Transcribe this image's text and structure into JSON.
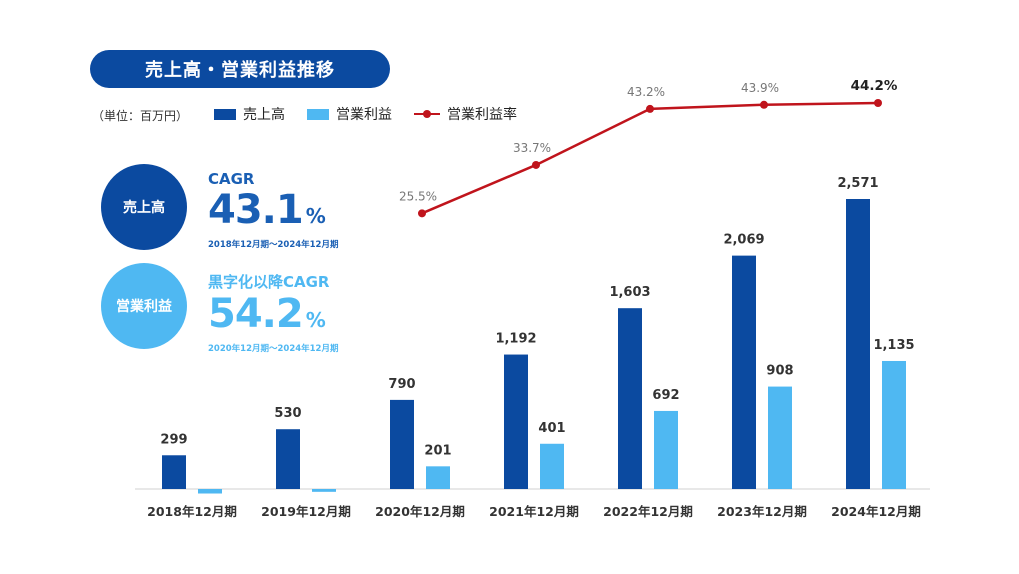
{
  "title": "売上高・営業利益推移",
  "unit_label": "（単位：百万円）",
  "legend": {
    "sales": "売上高",
    "profit": "営業利益",
    "margin": "営業利益率"
  },
  "kpi": {
    "sales": {
      "circle_label": "売上高",
      "label": "CAGR",
      "value": "43.1",
      "unit": "%",
      "period": "2018年12月期～2024年12月期"
    },
    "profit": {
      "circle_label": "営業利益",
      "label": "黒字化以降CAGR",
      "value": "54.2",
      "unit": "%",
      "period": "2020年12月期～2024年12月期"
    }
  },
  "colors": {
    "sales": "#0b4aa0",
    "profit": "#4fb8f2",
    "margin": "#c0141c"
  },
  "chart_data": {
    "type": "bar",
    "title": "売上高・営業利益推移",
    "xlabel": "",
    "ylabel": "百万円",
    "categories": [
      "2018年12月期",
      "2019年12月期",
      "2020年12月期",
      "2021年12月期",
      "2022年12月期",
      "2023年12月期",
      "2024年12月期"
    ],
    "series": [
      {
        "name": "売上高",
        "kind": "bar",
        "values": [
          299,
          530,
          790,
          1192,
          1603,
          2069,
          2571
        ],
        "labels": [
          "299",
          "530",
          "790",
          "1,192",
          "1,603",
          "2,069",
          "2,571"
        ]
      },
      {
        "name": "営業利益",
        "kind": "bar",
        "values": [
          -40,
          -25,
          201,
          401,
          692,
          908,
          1135
        ],
        "labels": [
          "",
          "",
          "201",
          "401",
          "692",
          "908",
          "1,135"
        ]
      },
      {
        "name": "営業利益率",
        "kind": "line",
        "values": [
          null,
          null,
          25.5,
          33.7,
          43.2,
          43.9,
          44.2
        ],
        "labels": [
          "",
          "",
          "25.5%",
          "33.7%",
          "43.2%",
          "43.9%",
          "44.2%"
        ]
      }
    ],
    "ylim": [
      -60,
      2700
    ],
    "grid": false
  }
}
